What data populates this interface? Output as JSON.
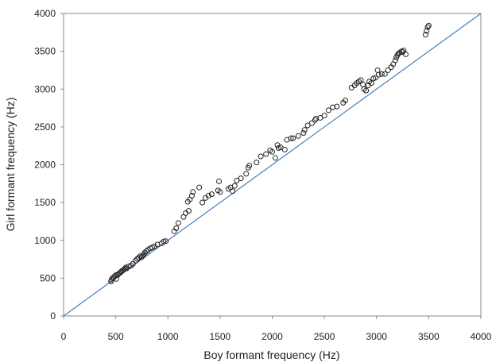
{
  "chart_data": {
    "type": "scatter",
    "title": "",
    "xlabel": "Boy formant frequency (Hz)",
    "ylabel": "Girl formant frequency (Hz)",
    "xlim": [
      0,
      4000
    ],
    "ylim": [
      0,
      4000
    ],
    "x_ticks": [
      0,
      500,
      1000,
      1500,
      2000,
      2500,
      3000,
      3500,
      4000
    ],
    "y_ticks": [
      0,
      500,
      1000,
      1500,
      2000,
      2500,
      3000,
      3500,
      4000
    ],
    "grid": false,
    "legend": "none",
    "reference_line": {
      "from": [
        0,
        0
      ],
      "to": [
        4000,
        4000
      ],
      "color": "#4a7ebb"
    },
    "marker_color": "#222222",
    "points": [
      [
        455,
        455
      ],
      [
        460,
        480
      ],
      [
        470,
        500
      ],
      [
        480,
        510
      ],
      [
        490,
        525
      ],
      [
        500,
        540
      ],
      [
        505,
        490
      ],
      [
        520,
        545
      ],
      [
        530,
        560
      ],
      [
        545,
        575
      ],
      [
        555,
        590
      ],
      [
        565,
        600
      ],
      [
        575,
        610
      ],
      [
        585,
        620
      ],
      [
        595,
        640
      ],
      [
        605,
        630
      ],
      [
        625,
        655
      ],
      [
        645,
        665
      ],
      [
        665,
        690
      ],
      [
        690,
        730
      ],
      [
        705,
        755
      ],
      [
        720,
        770
      ],
      [
        735,
        790
      ],
      [
        750,
        780
      ],
      [
        760,
        800
      ],
      [
        770,
        815
      ],
      [
        780,
        840
      ],
      [
        795,
        855
      ],
      [
        810,
        875
      ],
      [
        830,
        895
      ],
      [
        850,
        905
      ],
      [
        870,
        920
      ],
      [
        900,
        945
      ],
      [
        940,
        960
      ],
      [
        960,
        985
      ],
      [
        980,
        990
      ],
      [
        1060,
        1120
      ],
      [
        1080,
        1160
      ],
      [
        1100,
        1230
      ],
      [
        1150,
        1310
      ],
      [
        1170,
        1360
      ],
      [
        1190,
        1510
      ],
      [
        1200,
        1390
      ],
      [
        1210,
        1540
      ],
      [
        1230,
        1590
      ],
      [
        1240,
        1640
      ],
      [
        1300,
        1700
      ],
      [
        1330,
        1500
      ],
      [
        1360,
        1560
      ],
      [
        1390,
        1590
      ],
      [
        1420,
        1610
      ],
      [
        1480,
        1660
      ],
      [
        1490,
        1780
      ],
      [
        1500,
        1640
      ],
      [
        1580,
        1680
      ],
      [
        1600,
        1700
      ],
      [
        1620,
        1650
      ],
      [
        1640,
        1720
      ],
      [
        1660,
        1790
      ],
      [
        1700,
        1820
      ],
      [
        1750,
        1880
      ],
      [
        1770,
        1960
      ],
      [
        1780,
        1990
      ],
      [
        1850,
        2030
      ],
      [
        1890,
        2110
      ],
      [
        1940,
        2140
      ],
      [
        1980,
        2190
      ],
      [
        2000,
        2170
      ],
      [
        2030,
        2090
      ],
      [
        2050,
        2260
      ],
      [
        2060,
        2220
      ],
      [
        2080,
        2230
      ],
      [
        2120,
        2200
      ],
      [
        2140,
        2330
      ],
      [
        2180,
        2350
      ],
      [
        2200,
        2350
      ],
      [
        2250,
        2380
      ],
      [
        2300,
        2420
      ],
      [
        2310,
        2460
      ],
      [
        2340,
        2520
      ],
      [
        2380,
        2550
      ],
      [
        2410,
        2590
      ],
      [
        2420,
        2610
      ],
      [
        2460,
        2620
      ],
      [
        2500,
        2650
      ],
      [
        2540,
        2720
      ],
      [
        2580,
        2760
      ],
      [
        2620,
        2770
      ],
      [
        2680,
        2820
      ],
      [
        2700,
        2850
      ],
      [
        2760,
        3020
      ],
      [
        2790,
        3050
      ],
      [
        2810,
        3080
      ],
      [
        2830,
        3100
      ],
      [
        2850,
        3120
      ],
      [
        2870,
        3060
      ],
      [
        2880,
        3000
      ],
      [
        2900,
        2980
      ],
      [
        2920,
        3050
      ],
      [
        2930,
        3100
      ],
      [
        2950,
        3080
      ],
      [
        2970,
        3140
      ],
      [
        2990,
        3150
      ],
      [
        3010,
        3250
      ],
      [
        3020,
        3190
      ],
      [
        3050,
        3200
      ],
      [
        3080,
        3200
      ],
      [
        3110,
        3250
      ],
      [
        3140,
        3290
      ],
      [
        3160,
        3330
      ],
      [
        3180,
        3380
      ],
      [
        3190,
        3420
      ],
      [
        3200,
        3450
      ],
      [
        3210,
        3470
      ],
      [
        3220,
        3480
      ],
      [
        3240,
        3500
      ],
      [
        3250,
        3490
      ],
      [
        3260,
        3510
      ],
      [
        3280,
        3460
      ],
      [
        3470,
        3720
      ],
      [
        3480,
        3770
      ],
      [
        3490,
        3820
      ],
      [
        3500,
        3840
      ]
    ]
  }
}
